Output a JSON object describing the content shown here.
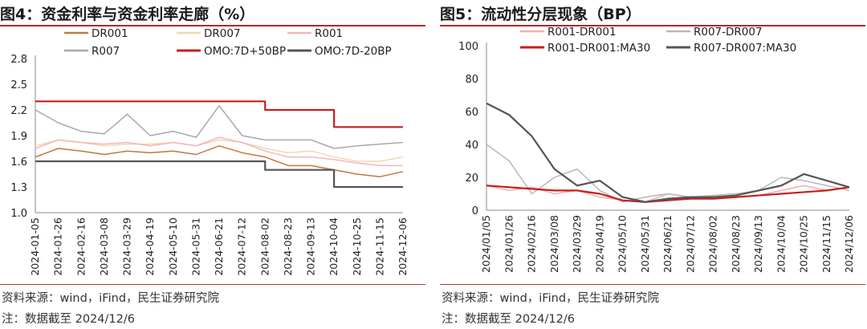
{
  "panels": [
    {
      "title": "图4：资金利率与资金利率走廊（%）",
      "source": "资料来源：wind，iFind，民生证券研究院",
      "note": "注：数据截至 2024/12/6"
    },
    {
      "title": "图5：流动性分层现象（BP）",
      "source": "资料来源：wind，iFind，民生证券研究院",
      "note": "注：数据截至 2024/12/6"
    }
  ],
  "chart_data": [
    {
      "type": "line",
      "title": "资金利率与资金利率走廊（%）",
      "ylim": [
        1.0,
        2.8
      ],
      "yticks": [
        "1.0",
        "1.3",
        "1.6",
        "1.9",
        "2.2",
        "2.5",
        "2.8"
      ],
      "x": [
        "2024-01-05",
        "2024-01-26",
        "2024-02-16",
        "2024-03-08",
        "2024-03-29",
        "2024-04-19",
        "2024-05-10",
        "2024-05-31",
        "2024-06-21",
        "2024-07-12",
        "2024-08-02",
        "2024-08-23",
        "2024-09-13",
        "2024-10-04",
        "2024-10-25",
        "2024-11-15",
        "2024-12-06"
      ],
      "legend": [
        "DR001",
        "DR007",
        "R001",
        "R007",
        "OMO:7D+50BP",
        "OMO:7D-20BP"
      ],
      "series": [
        {
          "name": "DR001",
          "color": "#c07a3c",
          "values": [
            1.65,
            1.75,
            1.72,
            1.68,
            1.72,
            1.7,
            1.72,
            1.68,
            1.78,
            1.7,
            1.65,
            1.55,
            1.55,
            1.5,
            1.45,
            1.42,
            1.48
          ]
        },
        {
          "name": "DR007",
          "color": "#f2d8b0",
          "values": [
            1.78,
            1.85,
            1.82,
            1.78,
            1.8,
            1.8,
            1.82,
            1.78,
            1.85,
            1.82,
            1.75,
            1.7,
            1.72,
            1.65,
            1.6,
            1.6,
            1.65
          ]
        },
        {
          "name": "R001",
          "color": "#efb8b8",
          "values": [
            1.75,
            1.85,
            1.82,
            1.8,
            1.82,
            1.78,
            1.82,
            1.78,
            1.88,
            1.82,
            1.72,
            1.65,
            1.65,
            1.62,
            1.58,
            1.55,
            1.55
          ]
        },
        {
          "name": "R007",
          "color": "#a8a8a8",
          "values": [
            2.2,
            2.05,
            1.95,
            1.92,
            2.15,
            1.9,
            1.95,
            1.88,
            2.25,
            1.9,
            1.85,
            1.85,
            1.85,
            1.75,
            1.78,
            1.8,
            1.82
          ]
        },
        {
          "name": "OMO:7D+50BP",
          "color": "#c81e1e",
          "values": [
            2.3,
            2.3,
            2.3,
            2.3,
            2.3,
            2.3,
            2.3,
            2.3,
            2.3,
            2.3,
            2.2,
            2.2,
            2.2,
            2.0,
            2.0,
            2.0,
            2.0
          ]
        },
        {
          "name": "OMO:7D-20BP",
          "color": "#555555",
          "values": [
            1.6,
            1.6,
            1.6,
            1.6,
            1.6,
            1.6,
            1.6,
            1.6,
            1.6,
            1.6,
            1.5,
            1.5,
            1.5,
            1.3,
            1.3,
            1.3,
            1.3
          ]
        }
      ]
    },
    {
      "type": "line",
      "title": "流动性分层现象（BP）",
      "ylim": [
        0,
        100
      ],
      "yticks": [
        "0",
        "20",
        "40",
        "60",
        "80",
        "100"
      ],
      "x": [
        "2024/01/05",
        "2024/01/26",
        "2024/02/16",
        "2024/03/08",
        "2024/03/29",
        "2024/04/19",
        "2024/05/10",
        "2024/05/31",
        "2024/06/21",
        "2024/07/12",
        "2024/08/02",
        "2024/08/23",
        "2024/09/13",
        "2024/10/04",
        "2024/10/25",
        "2024/11/15",
        "2024/12/06"
      ],
      "legend": [
        "R001-DR001",
        "R007-DR007",
        "R001-DR001:MA30",
        "R007-DR007:MA30"
      ],
      "series": [
        {
          "name": "R001-DR001",
          "color": "#f0b0b0",
          "values": [
            15,
            12,
            14,
            10,
            12,
            8,
            6,
            5,
            10,
            8,
            7,
            8,
            9,
            12,
            15,
            12,
            14
          ]
        },
        {
          "name": "R007-DR007",
          "color": "#b8b8b8",
          "values": [
            40,
            30,
            10,
            20,
            25,
            12,
            5,
            8,
            10,
            8,
            9,
            10,
            12,
            20,
            18,
            15,
            12
          ]
        },
        {
          "name": "R001-DR001:MA30",
          "color": "#c81e1e",
          "values": [
            15,
            14,
            13,
            12,
            12,
            10,
            6,
            5,
            6,
            7,
            7,
            8,
            9,
            10,
            11,
            12,
            14
          ]
        },
        {
          "name": "R007-DR007:MA30",
          "color": "#555555",
          "values": [
            65,
            58,
            45,
            25,
            15,
            18,
            8,
            5,
            7,
            8,
            8,
            9,
            12,
            15,
            22,
            18,
            14
          ]
        }
      ]
    }
  ]
}
